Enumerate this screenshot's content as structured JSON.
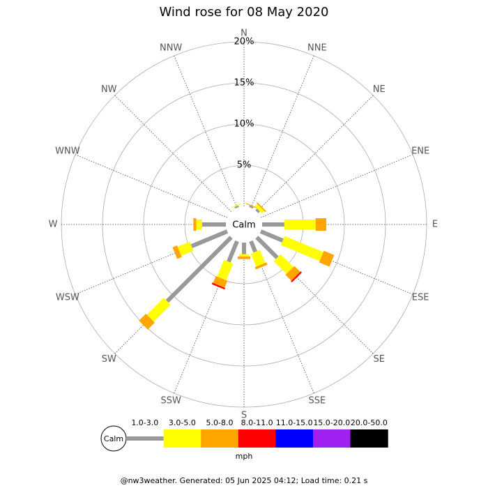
{
  "chart_data": {
    "type": "wind_rose",
    "title": "Wind rose for 08 May 2020",
    "directions": [
      "N",
      "NNE",
      "NE",
      "ENE",
      "E",
      "ESE",
      "SE",
      "SSE",
      "S",
      "SSW",
      "SW",
      "WSW",
      "W",
      "WNW",
      "NW",
      "NNW"
    ],
    "center_label": "Calm",
    "unit": "mph",
    "rlim": [
      0,
      20
    ],
    "rticks": [
      {
        "value": 5,
        "label": "5%"
      },
      {
        "value": 10,
        "label": "10%"
      },
      {
        "value": 15,
        "label": "15%"
      },
      {
        "value": 20,
        "label": "20%"
      }
    ],
    "series": [
      {
        "name": "1.0-3.0",
        "color": "#999999",
        "values": [
          0,
          0.2,
          0.3,
          0,
          2.7,
          2.9,
          3.5,
          1.4,
          1.4,
          2.7,
          11.0,
          4.7,
          2.9,
          0,
          0,
          0.2
        ]
      },
      {
        "name": "3.0-5.0",
        "color": "#ffff00",
        "values": [
          0,
          0,
          0.4,
          0,
          3.8,
          5.1,
          2.2,
          1.7,
          0.3,
          2.2,
          2.9,
          1.6,
          0.7,
          0,
          0,
          0.1
        ]
      },
      {
        "name": "5.0-8.0",
        "color": "#ffa500",
        "values": [
          0,
          0.1,
          0.15,
          0,
          1.3,
          1.35,
          1.0,
          0.3,
          0.3,
          0.9,
          1.2,
          0.6,
          0.35,
          0,
          0,
          0
        ]
      },
      {
        "name": "8.0-11.0",
        "color": "#ff0000",
        "values": [
          0,
          0,
          0,
          0,
          0,
          0,
          0.2,
          0,
          0,
          0.2,
          0,
          0,
          0,
          0,
          0,
          0
        ]
      },
      {
        "name": "11.0-15.0",
        "color": "#0000ff",
        "values": [
          0,
          0,
          0,
          0,
          0,
          0,
          0,
          0,
          0,
          0,
          0,
          0,
          0,
          0,
          0,
          0
        ]
      },
      {
        "name": "15.0-20.0",
        "color": "#a020f0",
        "values": [
          0,
          0,
          0,
          0,
          0,
          0,
          0,
          0,
          0,
          0,
          0,
          0,
          0,
          0,
          0,
          0
        ]
      },
      {
        "name": "20.0-50.0",
        "color": "#000000",
        "values": [
          0,
          0,
          0,
          0,
          0,
          0,
          0,
          0,
          0,
          0,
          0,
          0,
          0,
          0,
          0,
          0
        ]
      }
    ]
  },
  "footer": "@nw3weather. Generated: 05 Jun 2025 04:12; Load time: 0.21 s"
}
